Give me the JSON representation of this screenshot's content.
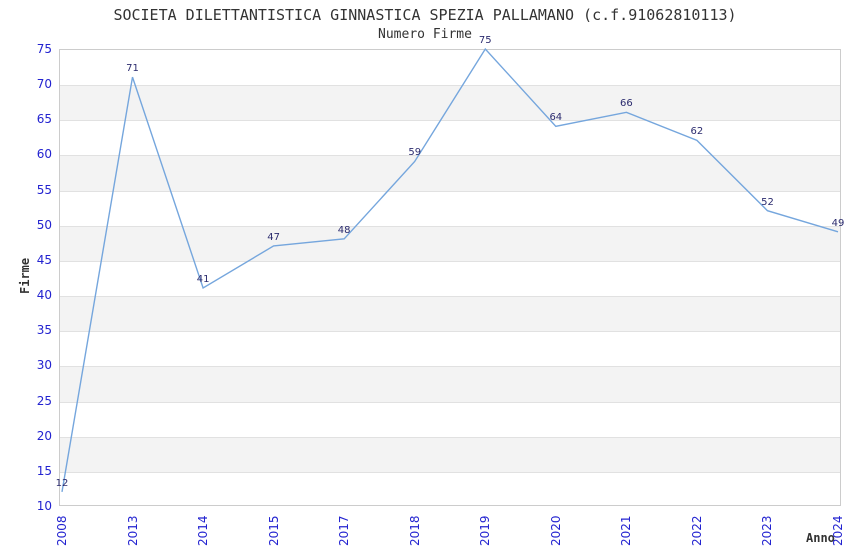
{
  "chart_data": {
    "type": "line",
    "title": "SOCIETA DILETTANTISTICA GINNASTICA SPEZIA PALLAMANO (c.f.91062810113)",
    "subtitle": "Numero Firme",
    "xlabel": "Anno",
    "ylabel": "Firme",
    "categories": [
      "2008",
      "2013",
      "2014",
      "2015",
      "2017",
      "2018",
      "2019",
      "2020",
      "2021",
      "2022",
      "2023",
      "2024"
    ],
    "values": [
      12,
      71,
      41,
      47,
      48,
      59,
      75,
      64,
      66,
      62,
      52,
      49
    ],
    "ylim": [
      10,
      75
    ],
    "ytick_step": 5,
    "grid": true,
    "legend": "none",
    "colors": {
      "line": "#75a6dd",
      "tick_labels": "#2323d0",
      "data_labels": "#2b2b6e",
      "title_text": "#333333",
      "band_gray": "#f3f3f3",
      "grid_line": "#e1e1e1",
      "plot_border": "#cccccc"
    }
  }
}
